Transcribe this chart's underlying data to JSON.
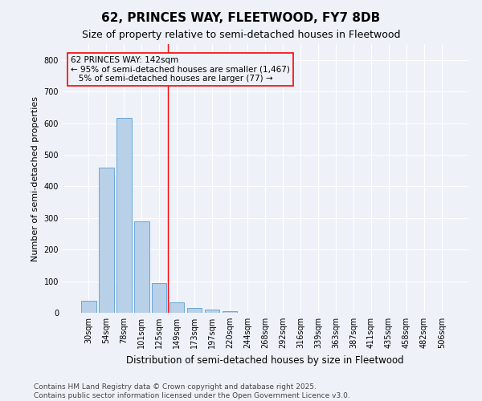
{
  "title": "62, PRINCES WAY, FLEETWOOD, FY7 8DB",
  "subtitle": "Size of property relative to semi-detached houses in Fleetwood",
  "xlabel": "Distribution of semi-detached houses by size in Fleetwood",
  "ylabel": "Number of semi-detached properties",
  "categories": [
    "30sqm",
    "54sqm",
    "78sqm",
    "101sqm",
    "125sqm",
    "149sqm",
    "173sqm",
    "197sqm",
    "220sqm",
    "244sqm",
    "268sqm",
    "292sqm",
    "316sqm",
    "339sqm",
    "363sqm",
    "387sqm",
    "411sqm",
    "435sqm",
    "458sqm",
    "482sqm",
    "506sqm"
  ],
  "values": [
    38,
    460,
    617,
    289,
    93,
    33,
    14,
    10,
    5,
    0,
    0,
    0,
    0,
    0,
    0,
    0,
    0,
    0,
    0,
    0,
    0
  ],
  "bar_color": "#b8d0e8",
  "bar_edge_color": "#5a9fd4",
  "vline_x_index": 4.5,
  "vline_color": "red",
  "annotation_text": "62 PRINCES WAY: 142sqm\n← 95% of semi-detached houses are smaller (1,467)\n   5% of semi-detached houses are larger (77) →",
  "annotation_box_color": "red",
  "ylim": [
    0,
    850
  ],
  "yticks": [
    0,
    100,
    200,
    300,
    400,
    500,
    600,
    700,
    800
  ],
  "background_color": "#eef2f8",
  "grid_color": "#ffffff",
  "footer": "Contains HM Land Registry data © Crown copyright and database right 2025.\nContains public sector information licensed under the Open Government Licence v3.0.",
  "title_fontsize": 11,
  "subtitle_fontsize": 9,
  "ylabel_fontsize": 8,
  "xlabel_fontsize": 8.5,
  "annotation_fontsize": 7.5,
  "footer_fontsize": 6.5,
  "tick_fontsize": 7
}
